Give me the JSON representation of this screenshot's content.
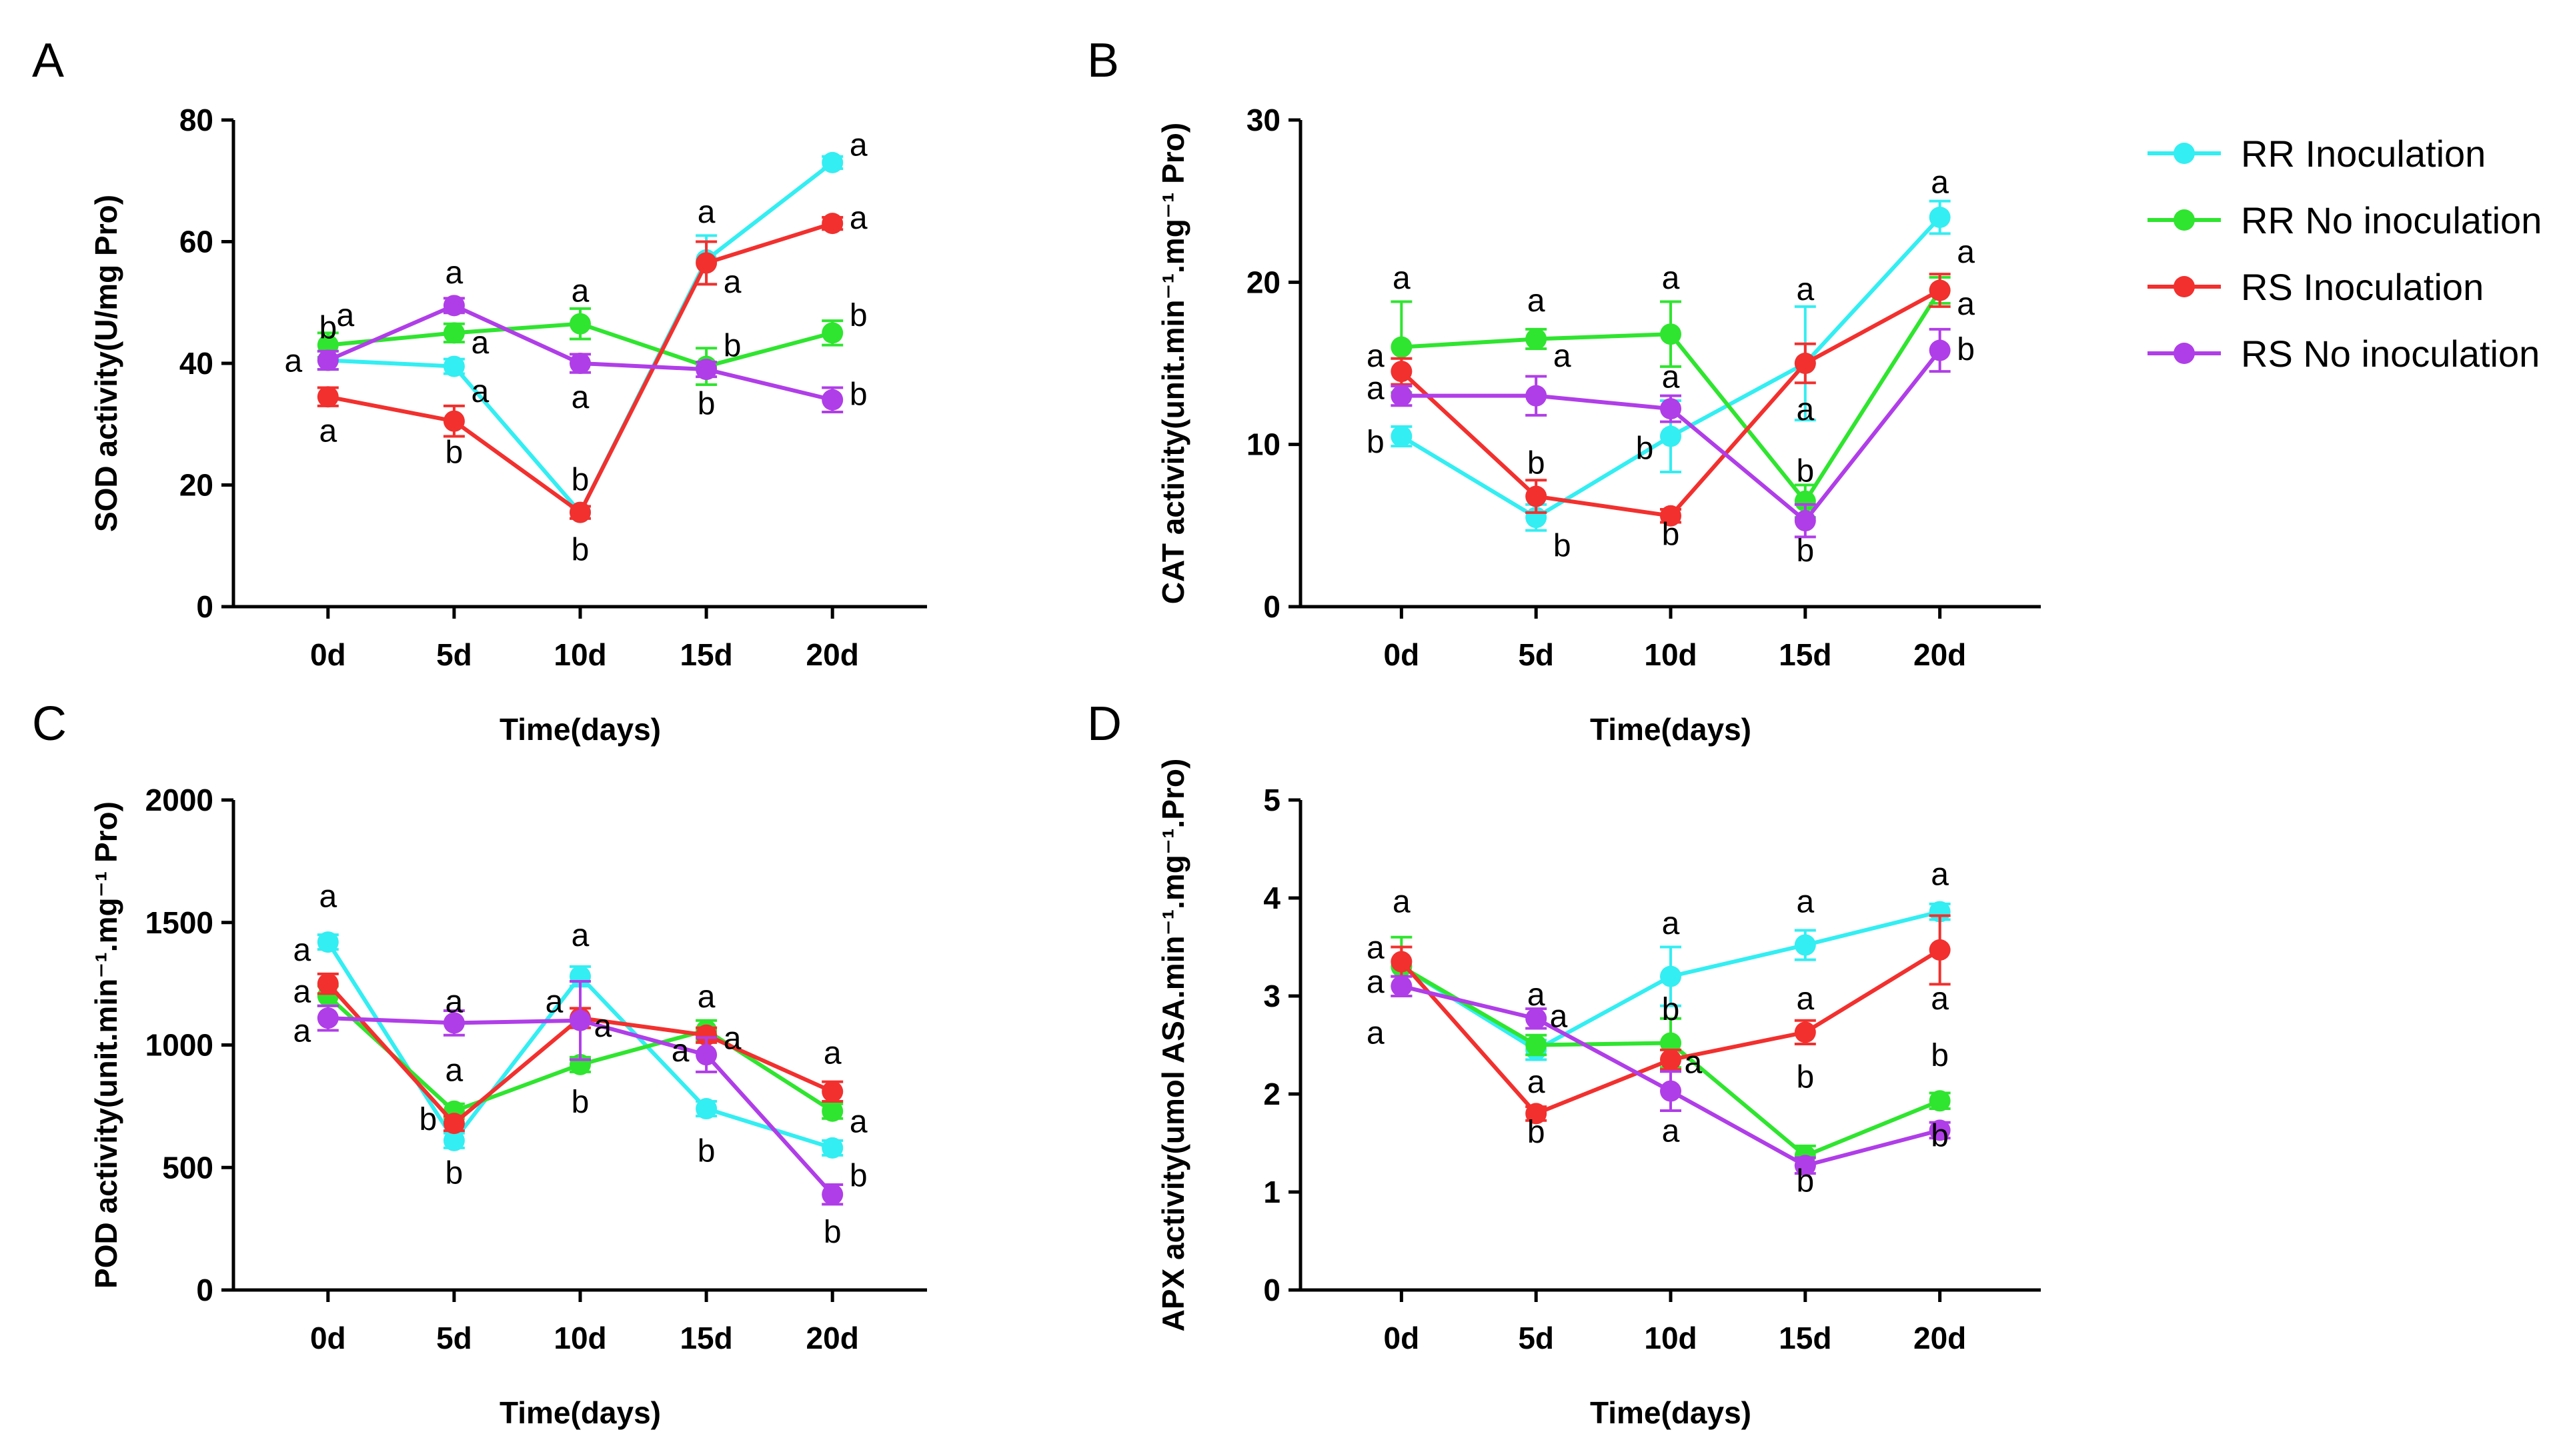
{
  "colors": {
    "RR Inoculation": "#33eef2",
    "RR No inoculation": "#2fe52f",
    "RS Inoculation": "#f2302e",
    "RS No inoculation": "#b03ee8"
  },
  "legend": [
    "RR Inoculation",
    "RR No inoculation",
    "RS Inoculation",
    "RS No inoculation"
  ],
  "chart_data": [
    {
      "id": "A",
      "label": "A",
      "type": "line",
      "xlabel": "Time(days)",
      "ylabel": "SOD activity(U/mg Pro)",
      "categories": [
        "0d",
        "5d",
        "10d",
        "15d",
        "20d"
      ],
      "ylim": [
        0,
        80
      ],
      "yticks": [
        0,
        20,
        40,
        60,
        80
      ],
      "series": [
        {
          "name": "RR Inoculation",
          "values": [
            40.5,
            39.5,
            15.5,
            57,
            73
          ],
          "err": [
            1.5,
            1.2,
            1,
            4,
            1
          ]
        },
        {
          "name": "RR No inoculation",
          "values": [
            43,
            45,
            46.5,
            39.5,
            45
          ],
          "err": [
            2,
            1.5,
            2.5,
            3,
            2
          ]
        },
        {
          "name": "RS Inoculation",
          "values": [
            34.5,
            30.5,
            15.5,
            56.5,
            63
          ],
          "err": [
            1.5,
            2.5,
            1,
            3.5,
            1
          ]
        },
        {
          "name": "RS No inoculation",
          "values": [
            40.5,
            49.5,
            40,
            39,
            34
          ],
          "err": [
            1.5,
            1.2,
            1.5,
            1.2,
            2
          ]
        }
      ],
      "annotations": [
        {
          "text": "b",
          "x": 0,
          "y": 46
        },
        {
          "text": "a",
          "x": 0,
          "y": 48,
          "dx": 1
        },
        {
          "text": "a",
          "x": 0,
          "y": 40.5,
          "dx": -2
        },
        {
          "text": "a",
          "x": 0,
          "y": 29
        },
        {
          "text": "a",
          "x": 1,
          "y": 55
        },
        {
          "text": "a",
          "x": 1,
          "y": 43.5,
          "dx": 1.5
        },
        {
          "text": "a",
          "x": 1,
          "y": 35.5,
          "dx": 1.5
        },
        {
          "text": "b",
          "x": 1,
          "y": 25.5
        },
        {
          "text": "a",
          "x": 2,
          "y": 52
        },
        {
          "text": "a",
          "x": 2,
          "y": 34.5
        },
        {
          "text": "b",
          "x": 2,
          "y": 21
        },
        {
          "text": "b",
          "x": 2,
          "y": 9.5
        },
        {
          "text": "a",
          "x": 3,
          "y": 65
        },
        {
          "text": "a",
          "x": 3,
          "y": 53.5,
          "dx": 1.5
        },
        {
          "text": "b",
          "x": 3,
          "y": 43,
          "dx": 1.5
        },
        {
          "text": "b",
          "x": 3,
          "y": 33.5
        },
        {
          "text": "a",
          "x": 4,
          "y": 76,
          "dx": 1.5
        },
        {
          "text": "a",
          "x": 4,
          "y": 64,
          "dx": 1.5
        },
        {
          "text": "b",
          "x": 4,
          "y": 48,
          "dx": 1.5
        },
        {
          "text": "b",
          "x": 4,
          "y": 35,
          "dx": 1.5
        }
      ]
    },
    {
      "id": "B",
      "label": "B",
      "type": "line",
      "xlabel": "Time(days)",
      "ylabel": "CAT activity(unit.min⁻¹.mg⁻¹ Pro)",
      "categories": [
        "0d",
        "5d",
        "10d",
        "15d",
        "20d"
      ],
      "ylim": [
        0,
        30
      ],
      "yticks": [
        0,
        10,
        20,
        30
      ],
      "series": [
        {
          "name": "RR Inoculation",
          "values": [
            10.5,
            5.5,
            10.5,
            15,
            24
          ],
          "err": [
            0.6,
            0.8,
            2.2,
            3.5,
            1
          ]
        },
        {
          "name": "RR No inoculation",
          "values": [
            16,
            16.5,
            16.8,
            6.5,
            19.5
          ],
          "err": [
            2.8,
            0.6,
            2,
            1,
            0.8
          ]
        },
        {
          "name": "RS Inoculation",
          "values": [
            14.5,
            6.8,
            5.6,
            15,
            19.5
          ],
          "err": [
            0.8,
            1,
            0.4,
            1.2,
            1
          ]
        },
        {
          "name": "RS No inoculation",
          "values": [
            13,
            13,
            12.2,
            5.3,
            15.8
          ],
          "err": [
            0.6,
            1.2,
            0.8,
            1,
            1.3
          ]
        }
      ],
      "annotations": [
        {
          "text": "a",
          "x": 0,
          "y": 20.3
        },
        {
          "text": "a",
          "x": 0,
          "y": 15.5,
          "dx": -1.5
        },
        {
          "text": "a",
          "x": 0,
          "y": 13.5,
          "dx": -1.5
        },
        {
          "text": "b",
          "x": 0,
          "y": 10.2,
          "dx": -1.5
        },
        {
          "text": "a",
          "x": 1,
          "y": 18.9
        },
        {
          "text": "a",
          "x": 1,
          "y": 15.5,
          "dx": 1.5
        },
        {
          "text": "b",
          "x": 1,
          "y": 8.9
        },
        {
          "text": "b",
          "x": 1,
          "y": 3.8,
          "dx": 1.5
        },
        {
          "text": "a",
          "x": 2,
          "y": 20.3
        },
        {
          "text": "a",
          "x": 2,
          "y": 14.2
        },
        {
          "text": "b",
          "x": 2,
          "y": 9.8,
          "dx": -1.5
        },
        {
          "text": "b",
          "x": 2,
          "y": 4.5
        },
        {
          "text": "a",
          "x": 3,
          "y": 19.6
        },
        {
          "text": "a",
          "x": 3,
          "y": 12.2
        },
        {
          "text": "b",
          "x": 3,
          "y": 8.4
        },
        {
          "text": "b",
          "x": 3,
          "y": 3.5
        },
        {
          "text": "a",
          "x": 4,
          "y": 26.2
        },
        {
          "text": "a",
          "x": 4,
          "y": 21.9,
          "dx": 1.5
        },
        {
          "text": "a",
          "x": 4,
          "y": 18.7,
          "dx": 1.5
        },
        {
          "text": "b",
          "x": 4,
          "y": 15.9,
          "dx": 1.5
        }
      ]
    },
    {
      "id": "C",
      "label": "C",
      "type": "line",
      "xlabel": "Time(days)",
      "ylabel": "POD activity(unit.min⁻¹.mg⁻¹ Pro)",
      "categories": [
        "0d",
        "5d",
        "10d",
        "15d",
        "20d"
      ],
      "ylim": [
        0,
        2000
      ],
      "yticks": [
        0,
        500,
        1000,
        1500,
        2000
      ],
      "series": [
        {
          "name": "RR Inoculation",
          "values": [
            1420,
            610,
            1280,
            740,
            580
          ],
          "err": [
            30,
            30,
            40,
            30,
            30
          ]
        },
        {
          "name": "RR No inoculation",
          "values": [
            1200,
            730,
            920,
            1060,
            730
          ],
          "err": [
            40,
            30,
            30,
            40,
            30
          ]
        },
        {
          "name": "RS Inoculation",
          "values": [
            1250,
            680,
            1110,
            1040,
            810
          ],
          "err": [
            40,
            30,
            40,
            30,
            40
          ]
        },
        {
          "name": "RS No inoculation",
          "values": [
            1110,
            1090,
            1100,
            960,
            390
          ],
          "err": [
            50,
            50,
            160,
            70,
            40
          ]
        }
      ],
      "annotations": [
        {
          "text": "a",
          "x": 0,
          "y": 1610
        },
        {
          "text": "a",
          "x": 0,
          "y": 1390,
          "dx": -1.5
        },
        {
          "text": "a",
          "x": 0,
          "y": 1220,
          "dx": -1.5
        },
        {
          "text": "a",
          "x": 0,
          "y": 1060,
          "dx": -1.5
        },
        {
          "text": "a",
          "x": 1,
          "y": 1180
        },
        {
          "text": "a",
          "x": 1,
          "y": 900
        },
        {
          "text": "b",
          "x": 1,
          "y": 700,
          "dx": -1.5
        },
        {
          "text": "b",
          "x": 1,
          "y": 480
        },
        {
          "text": "a",
          "x": 2,
          "y": 1450
        },
        {
          "text": "a",
          "x": 2,
          "y": 1180,
          "dx": -1.5
        },
        {
          "text": "a",
          "x": 2,
          "y": 1080,
          "dx": 1.3
        },
        {
          "text": "b",
          "x": 2,
          "y": 770
        },
        {
          "text": "a",
          "x": 3,
          "y": 1200
        },
        {
          "text": "a",
          "x": 3,
          "y": 1030,
          "dx": 1.5
        },
        {
          "text": "a",
          "x": 3,
          "y": 980,
          "dx": -1.5
        },
        {
          "text": "b",
          "x": 3,
          "y": 570
        },
        {
          "text": "a",
          "x": 4,
          "y": 970
        },
        {
          "text": "a",
          "x": 4,
          "y": 690,
          "dx": 1.5
        },
        {
          "text": "b",
          "x": 4,
          "y": 470,
          "dx": 1.5
        },
        {
          "text": "b",
          "x": 4,
          "y": 240
        }
      ]
    },
    {
      "id": "D",
      "label": "D",
      "type": "line",
      "xlabel": "Time(days)",
      "ylabel": "APX activity(umol ASA.min⁻¹.mg⁻¹.Pro)",
      "categories": [
        "0d",
        "5d",
        "10d",
        "15d",
        "20d"
      ],
      "ylim": [
        0,
        5
      ],
      "yticks": [
        0,
        1,
        2,
        3,
        4,
        5
      ],
      "series": [
        {
          "name": "RR Inoculation",
          "values": [
            3.3,
            2.45,
            3.2,
            3.52,
            3.86
          ],
          "err": [
            0.2,
            0.1,
            0.3,
            0.15,
            0.08
          ]
        },
        {
          "name": "RR No inoculation",
          "values": [
            3.3,
            2.5,
            2.52,
            1.37,
            1.93
          ],
          "err": [
            0.3,
            0.1,
            0.25,
            0.1,
            0.08
          ]
        },
        {
          "name": "RS Inoculation",
          "values": [
            3.35,
            1.8,
            2.35,
            2.63,
            3.47
          ],
          "err": [
            0.15,
            0.07,
            0.1,
            0.12,
            0.35
          ]
        },
        {
          "name": "RS No inoculation",
          "values": [
            3.1,
            2.77,
            2.03,
            1.27,
            1.63
          ],
          "err": [
            0.1,
            0.1,
            0.2,
            0.08,
            0.08
          ]
        }
      ],
      "annotations": [
        {
          "text": "a",
          "x": 0,
          "y": 3.97
        },
        {
          "text": "a",
          "x": 0,
          "y": 3.5,
          "dx": -1.5
        },
        {
          "text": "a",
          "x": 0,
          "y": 3.15,
          "dx": -1.5
        },
        {
          "text": "a",
          "x": 0,
          "y": 2.63,
          "dx": -1.5
        },
        {
          "text": "a",
          "x": 1,
          "y": 3.02
        },
        {
          "text": "a",
          "x": 1,
          "y": 2.8,
          "dx": 1.3
        },
        {
          "text": "a",
          "x": 1,
          "y": 2.13
        },
        {
          "text": "b",
          "x": 1,
          "y": 1.62
        },
        {
          "text": "a",
          "x": 2,
          "y": 3.75
        },
        {
          "text": "b",
          "x": 2,
          "y": 2.87
        },
        {
          "text": "a",
          "x": 2,
          "y": 2.33,
          "dx": 1.3
        },
        {
          "text": "a",
          "x": 2,
          "y": 1.63
        },
        {
          "text": "a",
          "x": 3,
          "y": 3.97
        },
        {
          "text": "a",
          "x": 3,
          "y": 2.98
        },
        {
          "text": "b",
          "x": 3,
          "y": 2.18
        },
        {
          "text": "b",
          "x": 3,
          "y": 1.12
        },
        {
          "text": "a",
          "x": 4,
          "y": 4.25
        },
        {
          "text": "a",
          "x": 4,
          "y": 2.98
        },
        {
          "text": "b",
          "x": 4,
          "y": 2.4
        },
        {
          "text": "b",
          "x": 4,
          "y": 1.58
        }
      ]
    }
  ]
}
